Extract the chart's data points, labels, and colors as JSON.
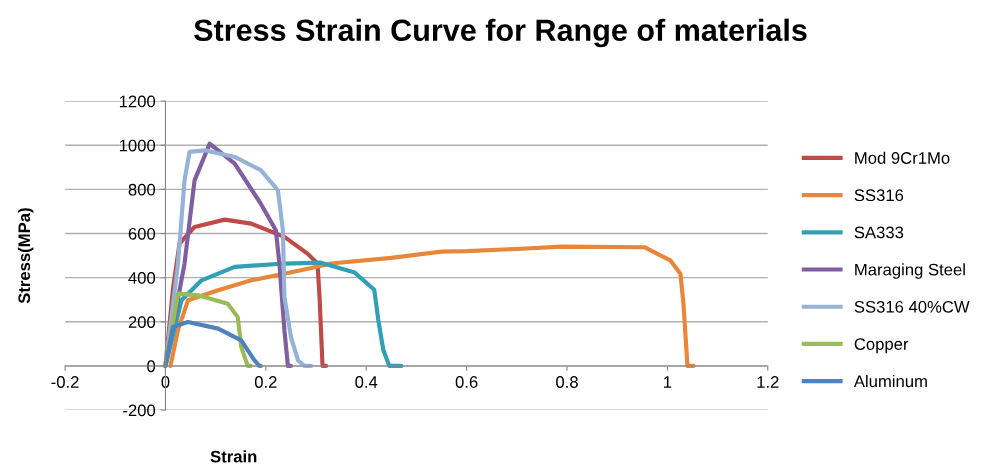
{
  "chart_data": {
    "type": "line",
    "title": "Stress Strain Curve for Range of materials",
    "xlabel": "Strain",
    "ylabel": "Stress(MPa)",
    "xlim": [
      -0.2,
      1.2
    ],
    "xticks": [
      -0.2,
      0,
      0.2,
      0.4,
      0.6,
      0.8,
      1,
      1.2
    ],
    "ylim": [
      -200,
      1200
    ],
    "yticks": [
      -200,
      0,
      200,
      400,
      600,
      800,
      1000,
      1200
    ],
    "grid": "y",
    "legend": "right",
    "marker": "none",
    "line_style": "solid",
    "series": [
      {
        "name": "Mod 9Cr1Mo",
        "color": "#be4b48",
        "x": [
          0,
          0.015,
          0.028,
          0.058,
          0.118,
          0.171,
          0.237,
          0.283,
          0.303,
          0.307,
          0.313,
          0.32
        ],
        "values": [
          0,
          350,
          554,
          630,
          663,
          645,
          585,
          509,
          464,
          313,
          0,
          0
        ]
      },
      {
        "name": "SS316",
        "color": "#e8873a",
        "x": [
          0.01,
          0.025,
          0.045,
          0.105,
          0.171,
          0.27,
          0.33,
          0.45,
          0.55,
          0.6,
          0.7,
          0.789,
          0.954,
          1.006,
          1.026,
          1.032,
          1.04,
          1.052
        ],
        "values": [
          0,
          162,
          298,
          343,
          388,
          434,
          464,
          490,
          518,
          520,
          530,
          541,
          538,
          478,
          418,
          284,
          0,
          0
        ]
      },
      {
        "name": "SA333",
        "color": "#31a0b5",
        "x": [
          0,
          0.032,
          0.072,
          0.138,
          0.237,
          0.31,
          0.377,
          0.416,
          0.424,
          0.434,
          0.446,
          0.47
        ],
        "values": [
          0,
          298,
          388,
          449,
          464,
          468,
          423,
          345,
          209,
          73,
          0,
          0
        ]
      },
      {
        "name": "Maraging Steel",
        "color": "#7f5fa0",
        "x": [
          0,
          0.038,
          0.058,
          0.088,
          0.138,
          0.19,
          0.22,
          0.227,
          0.237,
          0.244,
          0.25
        ],
        "values": [
          0,
          464,
          841,
          1007,
          917,
          735,
          615,
          464,
          162,
          0,
          0
        ]
      },
      {
        "name": "SS316 40%CW",
        "color": "#95b3d7",
        "x": [
          0,
          0.025,
          0.038,
          0.048,
          0.078,
          0.138,
          0.19,
          0.224,
          0.234,
          0.237,
          0.25,
          0.264,
          0.277,
          0.29
        ],
        "values": [
          0,
          464,
          841,
          970,
          977,
          947,
          887,
          796,
          615,
          313,
          131,
          26,
          0,
          0
        ]
      },
      {
        "name": "Copper",
        "color": "#9bbb59",
        "x": [
          0,
          0.025,
          0.065,
          0.124,
          0.144,
          0.151,
          0.164,
          0.17
        ],
        "values": [
          0,
          328,
          320,
          282,
          222,
          86,
          0,
          0
        ]
      },
      {
        "name": "Aluminum",
        "color": "#4f81bd",
        "x": [
          0,
          0.015,
          0.045,
          0.105,
          0.151,
          0.177,
          0.187,
          0.19
        ],
        "values": [
          0,
          177,
          199,
          169,
          116,
          26,
          0,
          0
        ]
      }
    ]
  }
}
